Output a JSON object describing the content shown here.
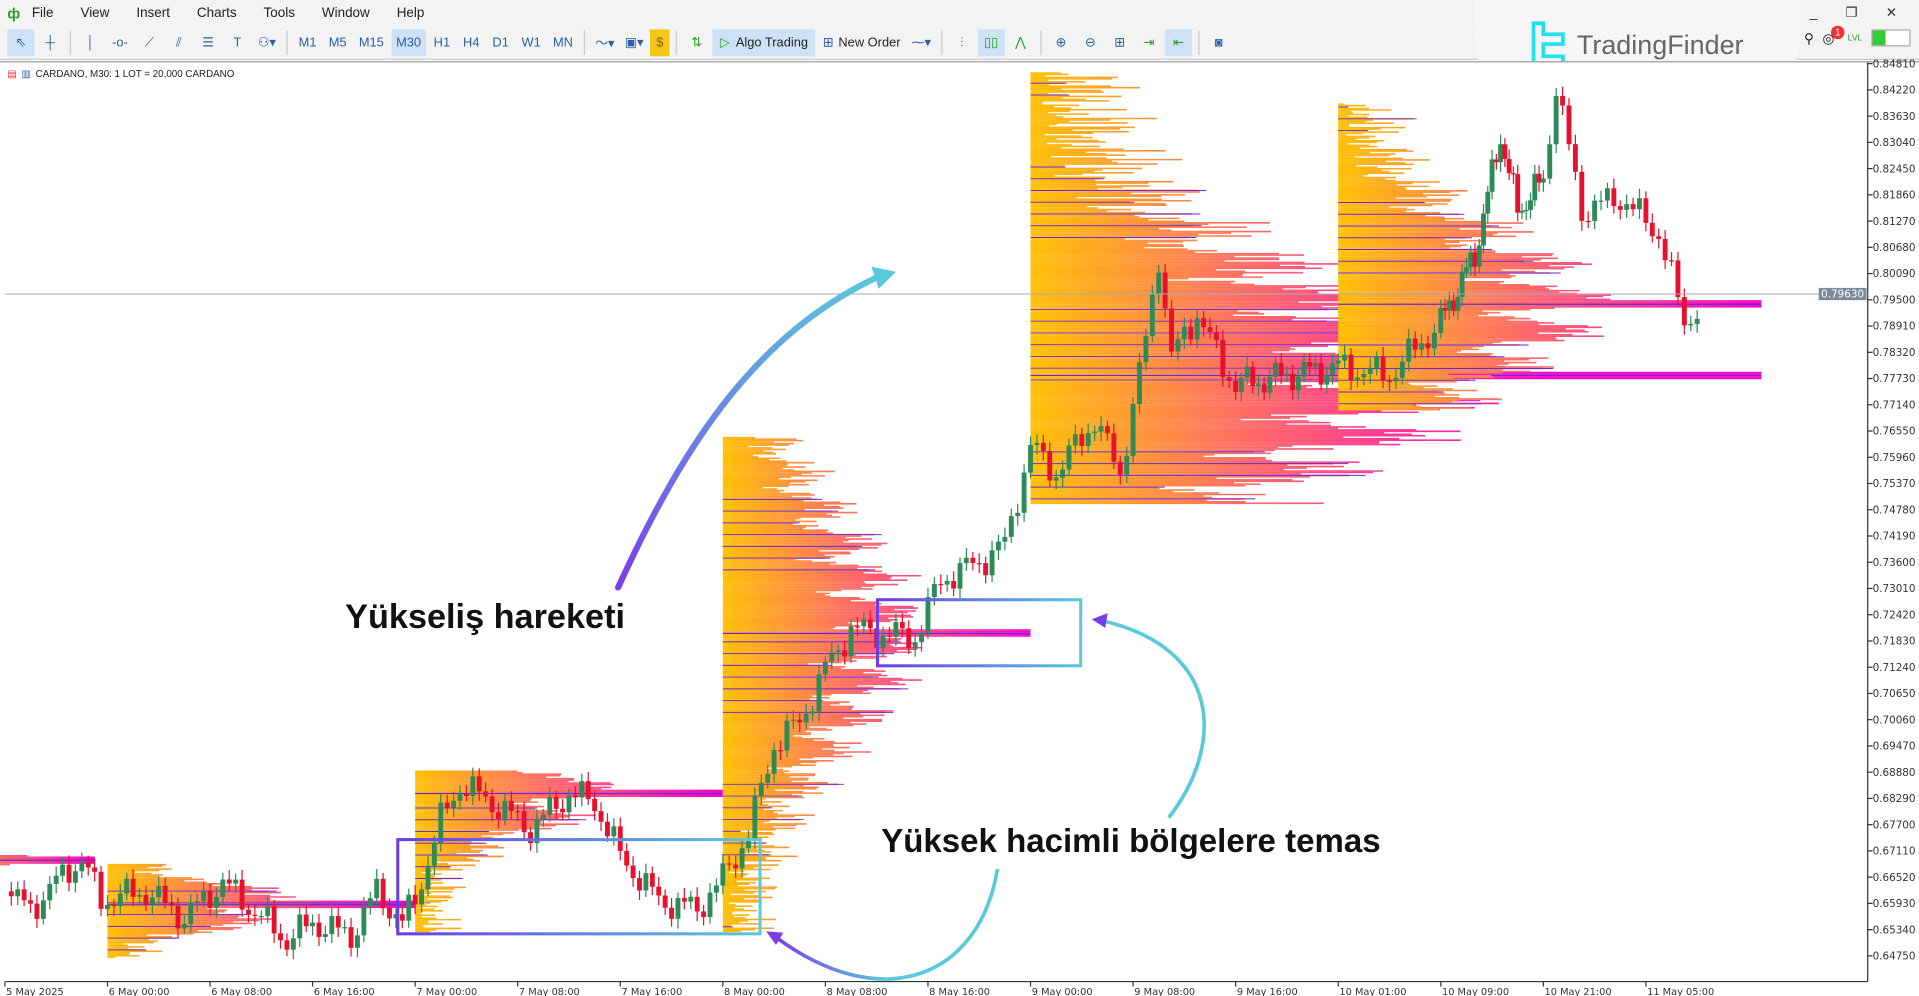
{
  "menu": {
    "items": [
      "File",
      "View",
      "Insert",
      "Charts",
      "Tools",
      "Window",
      "Help"
    ]
  },
  "toolbar": {
    "timeframes": [
      "M1",
      "M5",
      "M15",
      "M30",
      "H1",
      "H4",
      "D1",
      "W1",
      "MN"
    ],
    "selected_timeframe": "M30",
    "algo_trading": "Algo Trading",
    "new_order": "New Order",
    "notification_count": "1",
    "lvl": "LVL"
  },
  "brand": {
    "name": "TradingFinder"
  },
  "chart_header": {
    "text": "CARDANO, M30:  1 LOT = 20,000 CARDANO"
  },
  "annotations": {
    "rise": "Yükseliş hareketi",
    "touch": "Yüksek hacimli bölgelere temas"
  },
  "colors": {
    "bull": "#2e8b57",
    "bear": "#e8112d",
    "profile_start": "#ffc107",
    "profile_mid": "#ff7a5a",
    "profile_end": "#ff00cc",
    "poc_line": "#6a2ad6",
    "box_start": "#6a3de8",
    "box_end": "#5bc8dc"
  },
  "chart_data": {
    "type": "candlestick",
    "symbol": "CARDANO",
    "timeframe": "M30",
    "current_price": "0.79630",
    "y_ticks": [
      "0.84810",
      "0.84220",
      "0.83630",
      "0.83040",
      "0.82450",
      "0.81860",
      "0.81270",
      "0.80680",
      "0.80090",
      "0.79500",
      "0.78910",
      "0.78320",
      "0.77730",
      "0.77140",
      "0.76550",
      "0.75960",
      "0.75370",
      "0.74780",
      "0.74190",
      "0.73600",
      "0.73010",
      "0.72420",
      "0.71830",
      "0.71240",
      "0.70650",
      "0.70060",
      "0.69470",
      "0.68880",
      "0.68290",
      "0.67700",
      "0.67110",
      "0.66520",
      "0.65930",
      "0.65340",
      "0.64750"
    ],
    "x_ticks": [
      "5 May 2025",
      "6 May 00:00",
      "6 May 08:00",
      "6 May 16:00",
      "7 May 00:00",
      "7 May 08:00",
      "7 May 16:00",
      "8 May 00:00",
      "8 May 08:00",
      "8 May 16:00",
      "9 May 00:00",
      "9 May 08:00",
      "9 May 16:00",
      "10 May 01:00",
      "10 May 09:00",
      "10 May 21:00",
      "11 May 05:00"
    ],
    "x_tick_times": [
      "5 May 16:00",
      "6 May 00:00",
      "6 May 08:00",
      "6 May 16:00",
      "7 May 00:00",
      "7 May 08:00",
      "7 May 16:00",
      "8 May 00:00",
      "8 May 08:00",
      "8 May 16:00",
      "9 May 00:00",
      "9 May 08:00",
      "9 May 16:00",
      "10 May 01:00",
      "10 May 09:00",
      "10 May 21:00",
      "11 May 05:00"
    ],
    "price_path": [
      [
        "5 May 16:00",
        0.662
      ],
      [
        "5 May 18:00",
        0.658
      ],
      [
        "5 May 21:00",
        0.667
      ],
      [
        "5 May 22:00",
        0.669
      ],
      [
        "5 May 23:30",
        0.66
      ],
      [
        "6 May 03:00",
        0.662
      ],
      [
        "6 May 06:00",
        0.656
      ],
      [
        "6 May 09:00",
        0.664
      ],
      [
        "6 May 12:00",
        0.656
      ],
      [
        "6 May 14:00",
        0.651
      ],
      [
        "6 May 16:00",
        0.655
      ],
      [
        "6 May 19:00",
        0.652
      ],
      [
        "6 May 21:00",
        0.662
      ],
      [
        "6 May 23:00",
        0.655
      ],
      [
        "7 May 00:00",
        0.66
      ],
      [
        "7 May 02:00",
        0.678
      ],
      [
        "7 May 03:30",
        0.686
      ],
      [
        "7 May 06:00",
        0.682
      ],
      [
        "7 May 09:00",
        0.676
      ],
      [
        "7 May 12:00",
        0.684
      ],
      [
        "7 May 14:00",
        0.682
      ],
      [
        "7 May 16:00",
        0.67
      ],
      [
        "7 May 19:00",
        0.66
      ],
      [
        "7 May 22:00",
        0.658
      ],
      [
        "8 May 00:00",
        0.665
      ],
      [
        "8 May 02:00",
        0.675
      ],
      [
        "8 May 04:00",
        0.695
      ],
      [
        "8 May 06:00",
        0.7
      ],
      [
        "8 May 08:00",
        0.712
      ],
      [
        "8 May 10:00",
        0.721
      ],
      [
        "8 May 15:00",
        0.719
      ],
      [
        "8 May 17:00",
        0.732
      ],
      [
        "8 May 20:00",
        0.736
      ],
      [
        "8 May 22:00",
        0.74
      ],
      [
        "9 May 00:00",
        0.762
      ],
      [
        "9 May 02:00",
        0.756
      ],
      [
        "9 May 05:00",
        0.768
      ],
      [
        "9 May 07:00",
        0.756
      ],
      [
        "9 May 09:00",
        0.786
      ],
      [
        "9 May 10:00",
        0.805
      ],
      [
        "9 May 11:00",
        0.782
      ],
      [
        "9 May 13:00",
        0.792
      ],
      [
        "9 May 15:00",
        0.78
      ],
      [
        "9 May 16:00",
        0.776
      ],
      [
        "10 May 01:00",
        0.78
      ],
      [
        "10 May 05:00",
        0.778
      ],
      [
        "10 May 09:00",
        0.79
      ],
      [
        "10 May 13:00",
        0.805
      ],
      [
        "10 May 16:00",
        0.832
      ],
      [
        "10 May 18:00",
        0.815
      ],
      [
        "10 May 21:00",
        0.822
      ],
      [
        "10 May 22:00",
        0.843
      ],
      [
        "11 May 00:00",
        0.815
      ],
      [
        "11 May 03:00",
        0.818
      ],
      [
        "11 May 06:00",
        0.81
      ],
      [
        "11 May 08:00",
        0.79
      ],
      [
        "11 May 09:00",
        0.793
      ]
    ],
    "volume_profiles": [
      {
        "start": "5 May 10:00",
        "low": 0.668,
        "high": 0.67,
        "poc": 0.669,
        "extent": "5 May 23:00"
      },
      {
        "start": "6 May 00:00",
        "low": 0.647,
        "high": 0.668,
        "poc": 0.659,
        "extent": "7 May 00:00"
      },
      {
        "start": "7 May 00:00",
        "low": 0.653,
        "high": 0.689,
        "poc": 0.684,
        "extent": "8 May 00:00"
      },
      {
        "start": "8 May 00:00",
        "low": 0.653,
        "high": 0.764,
        "poc": 0.72,
        "extent": "9 May 00:00"
      },
      {
        "start": "9 May 00:00",
        "low": 0.749,
        "high": 0.846,
        "poc": 0.778,
        "extent": "11 May 14:00"
      },
      {
        "start": "10 May 01:00",
        "low": 0.77,
        "high": 0.839,
        "poc": 0.794,
        "extent": "11 May 14:00"
      }
    ]
  }
}
